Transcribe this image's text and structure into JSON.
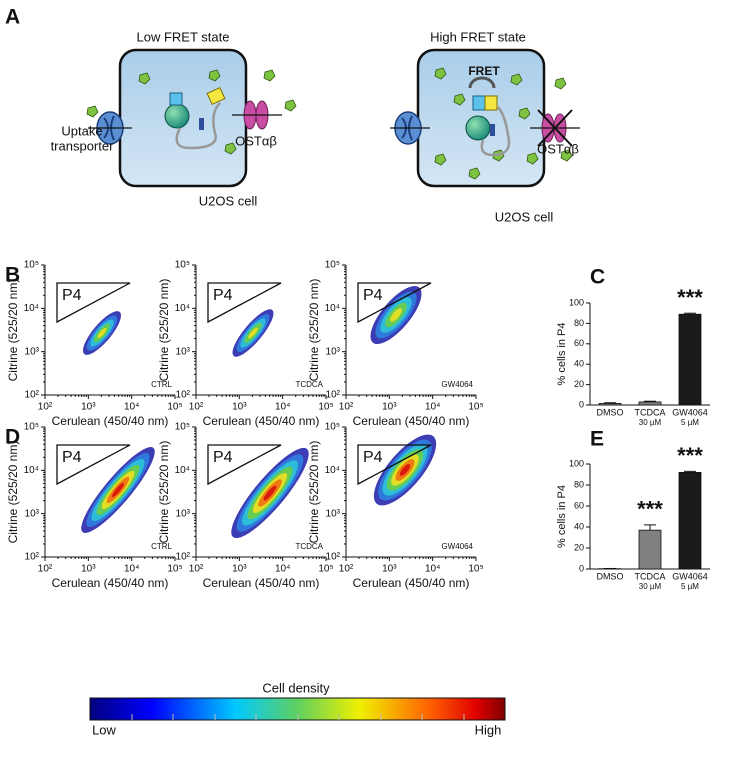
{
  "panel_labels": [
    "A",
    "B",
    "C",
    "D",
    "E"
  ],
  "diagram": {
    "left": {
      "title": "Low FRET state",
      "uptake_label": [
        "Uptake",
        "transporter"
      ],
      "efflux_label": "OSTαβ",
      "cell_label": "U2OS cell"
    },
    "right": {
      "title": "High FRET state",
      "fret_label": "FRET",
      "efflux_label": "OSTαβ",
      "cell_label": "U2OS cell"
    }
  },
  "colorbar": {
    "title": "Cell density",
    "low": "Low",
    "high": "High"
  },
  "chart_data": [
    {
      "type": "density",
      "gate": "P4",
      "condition": "CTRL",
      "xlabel": "Cerulean (450/40 nm)",
      "ylabel": "Citrine (525/20 nm)",
      "log_scale": true,
      "xlim": [
        100,
        100000
      ],
      "ylim": [
        100,
        100000
      ],
      "xticks": [
        {
          "value": 100,
          "label": "10²"
        },
        {
          "value": 1000,
          "label": "10³"
        },
        {
          "value": 10000,
          "label": "10⁴"
        },
        {
          "value": 100000,
          "label": "10⁵"
        }
      ],
      "yticks": [
        {
          "value": 100,
          "label": "10²"
        },
        {
          "value": 1000,
          "label": "10³"
        },
        {
          "value": 10000,
          "label": "10⁴"
        },
        {
          "value": 100000,
          "label": "10⁵"
        }
      ]
    },
    {
      "type": "density",
      "gate": "P4",
      "condition": "TCDCA",
      "xlabel": "Cerulean (450/40 nm)",
      "ylabel": "Citrine (525/20 nm)",
      "log_scale": true,
      "xlim": [
        100,
        100000
      ],
      "ylim": [
        100,
        100000
      ],
      "xticks": [
        {
          "value": 100,
          "label": "10²"
        },
        {
          "value": 1000,
          "label": "10³"
        },
        {
          "value": 10000,
          "label": "10⁴"
        },
        {
          "value": 100000,
          "label": "10⁵"
        }
      ],
      "yticks": [
        {
          "value": 100,
          "label": "10²"
        },
        {
          "value": 1000,
          "label": "10³"
        },
        {
          "value": 10000,
          "label": "10⁴"
        },
        {
          "value": 100000,
          "label": "10⁵"
        }
      ]
    },
    {
      "type": "density",
      "gate": "P4",
      "condition": "GW4064",
      "xlabel": "Cerulean (450/40 nm)",
      "ylabel": "Citrine (525/20 nm)",
      "log_scale": true,
      "xlim": [
        100,
        100000
      ],
      "ylim": [
        100,
        100000
      ],
      "xticks": [
        {
          "value": 100,
          "label": "10²"
        },
        {
          "value": 1000,
          "label": "10³"
        },
        {
          "value": 10000,
          "label": "10⁴"
        },
        {
          "value": 100000,
          "label": "10⁵"
        }
      ],
      "yticks": [
        {
          "value": 100,
          "label": "10²"
        },
        {
          "value": 1000,
          "label": "10³"
        },
        {
          "value": 10000,
          "label": "10⁴"
        },
        {
          "value": 100000,
          "label": "10⁵"
        }
      ]
    },
    {
      "type": "density",
      "gate": "P4",
      "condition": "CTRL",
      "xlabel": "Cerulean (450/40 nm)",
      "ylabel": "Citrine (525/20 nm)",
      "log_scale": true,
      "xlim": [
        100,
        100000
      ],
      "ylim": [
        100,
        100000
      ],
      "xticks": [
        {
          "value": 100,
          "label": "10²"
        },
        {
          "value": 1000,
          "label": "10³"
        },
        {
          "value": 10000,
          "label": "10⁴"
        },
        {
          "value": 100000,
          "label": "10⁵"
        }
      ],
      "yticks": [
        {
          "value": 100,
          "label": "10²"
        },
        {
          "value": 1000,
          "label": "10³"
        },
        {
          "value": 10000,
          "label": "10⁴"
        },
        {
          "value": 100000,
          "label": "10⁵"
        }
      ]
    },
    {
      "type": "density",
      "gate": "P4",
      "condition": "TCDCA",
      "xlabel": "Cerulean (450/40 nm)",
      "ylabel": "Citrine (525/20 nm)",
      "log_scale": true,
      "xlim": [
        100,
        100000
      ],
      "ylim": [
        100,
        100000
      ],
      "xticks": [
        {
          "value": 100,
          "label": "10²"
        },
        {
          "value": 1000,
          "label": "10³"
        },
        {
          "value": 10000,
          "label": "10⁴"
        },
        {
          "value": 100000,
          "label": "10⁵"
        }
      ],
      "yticks": [
        {
          "value": 100,
          "label": "10²"
        },
        {
          "value": 1000,
          "label": "10³"
        },
        {
          "value": 10000,
          "label": "10⁴"
        },
        {
          "value": 100000,
          "label": "10⁵"
        }
      ]
    },
    {
      "type": "density",
      "gate": "P4",
      "condition": "GW4064",
      "xlabel": "Cerulean (450/40 nm)",
      "ylabel": "Citrine (525/20 nm)",
      "log_scale": true,
      "xlim": [
        100,
        100000
      ],
      "ylim": [
        100,
        100000
      ],
      "xticks": [
        {
          "value": 100,
          "label": "10²"
        },
        {
          "value": 1000,
          "label": "10³"
        },
        {
          "value": 10000,
          "label": "10⁴"
        },
        {
          "value": 100000,
          "label": "10⁵"
        }
      ],
      "yticks": [
        {
          "value": 100,
          "label": "10²"
        },
        {
          "value": 1000,
          "label": "10³"
        },
        {
          "value": 10000,
          "label": "10⁴"
        },
        {
          "value": 100000,
          "label": "10⁵"
        }
      ]
    },
    {
      "type": "bar",
      "categories": [
        "DMSO",
        "TCDCA",
        "GW4064"
      ],
      "concentrations": [
        null,
        "30 µM",
        "5 µM"
      ],
      "values": [
        1.5,
        3,
        89
      ],
      "errors": [
        0.7,
        0.7,
        1
      ],
      "colors": [
        "#808080",
        "#808080",
        "#1a1a1a"
      ],
      "significance": [
        null,
        null,
        "***"
      ],
      "ylabel": "% cells in P4",
      "ylim": [
        0,
        100
      ],
      "yticks": [
        0,
        20,
        40,
        60,
        80,
        100
      ]
    },
    {
      "type": "bar",
      "categories": [
        "DMSO",
        "TCDCA",
        "GW4064"
      ],
      "concentrations": [
        null,
        "30 µM",
        "5 µM"
      ],
      "values": [
        0.3,
        37,
        92
      ],
      "errors": [
        0.2,
        5,
        1
      ],
      "colors": [
        "#808080",
        "#808080",
        "#1a1a1a"
      ],
      "significance": [
        null,
        "***",
        "***"
      ],
      "ylabel": "% cells in P4",
      "ylim": [
        0,
        100
      ],
      "yticks": [
        0,
        20,
        40,
        60,
        80,
        100
      ]
    }
  ]
}
